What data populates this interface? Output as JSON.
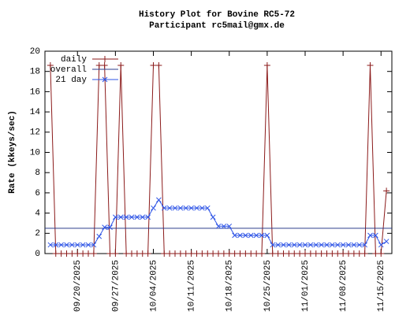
{
  "chart_data": {
    "type": "line",
    "title": "History Plot for Bovine RC5-72",
    "subtitle": "Participant rc5mail@gmx.de",
    "y_label": "Rate (kkeys/sec)",
    "x": [
      "09/15/2025",
      "09/16/2025",
      "09/17/2025",
      "09/18/2025",
      "09/19/2025",
      "09/20/2025",
      "09/21/2025",
      "09/22/2025",
      "09/23/2025",
      "09/24/2025",
      "09/25/2025",
      "09/26/2025",
      "09/27/2025",
      "09/28/2025",
      "09/29/2025",
      "09/30/2025",
      "10/01/2025",
      "10/02/2025",
      "10/03/2025",
      "10/04/2025",
      "10/05/2025",
      "10/06/2025",
      "10/07/2025",
      "10/08/2025",
      "10/09/2025",
      "10/10/2025",
      "10/11/2025",
      "10/12/2025",
      "10/13/2025",
      "10/14/2025",
      "10/15/2025",
      "10/16/2025",
      "10/17/2025",
      "10/18/2025",
      "10/19/2025",
      "10/20/2025",
      "10/21/2025",
      "10/22/2025",
      "10/23/2025",
      "10/24/2025",
      "10/25/2025",
      "10/26/2025",
      "10/27/2025",
      "10/28/2025",
      "10/29/2025",
      "10/30/2025",
      "10/31/2025",
      "11/01/2025",
      "11/02/2025",
      "11/03/2025",
      "11/04/2025",
      "11/05/2025",
      "11/06/2025",
      "11/07/2025",
      "11/08/2025",
      "11/09/2025",
      "11/10/2025",
      "11/11/2025",
      "11/12/2025",
      "11/13/2025",
      "11/14/2025",
      "11/15/2025",
      "11/16/2025"
    ],
    "series": [
      {
        "name": "daily",
        "color": "#8b1a1a",
        "marker": "plus",
        "values": [
          18.6,
          0,
          0,
          0,
          0,
          0,
          0,
          0,
          0,
          18.6,
          18.6,
          0,
          0,
          18.6,
          0,
          0,
          0,
          0,
          0,
          18.6,
          18.6,
          0,
          0,
          0,
          0,
          0,
          0,
          0,
          0,
          0,
          0,
          0,
          0,
          0,
          0,
          0,
          0,
          0,
          0,
          0,
          18.6,
          0,
          0,
          0,
          0,
          0,
          0,
          0,
          0,
          0,
          0,
          0,
          0,
          0,
          0,
          0,
          0,
          0,
          0,
          18.6,
          0,
          0,
          6.2
        ]
      },
      {
        "name": "overall",
        "color": "#2c3e8c",
        "value": 2.5
      },
      {
        "name": "21 day",
        "color": "#2f55e6",
        "marker": "cross",
        "values": [
          0.86,
          0.86,
          0.86,
          0.86,
          0.86,
          0.86,
          0.86,
          0.86,
          0.86,
          1.7,
          2.6,
          2.6,
          3.6,
          3.6,
          3.6,
          3.6,
          3.6,
          3.6,
          3.6,
          4.5,
          5.3,
          4.5,
          4.5,
          4.5,
          4.5,
          4.5,
          4.5,
          4.5,
          4.5,
          4.5,
          3.6,
          2.7,
          2.7,
          2.7,
          1.8,
          1.8,
          1.8,
          1.8,
          1.8,
          1.8,
          1.8,
          0.86,
          0.86,
          0.86,
          0.86,
          0.86,
          0.86,
          0.86,
          0.86,
          0.86,
          0.86,
          0.86,
          0.86,
          0.86,
          0.86,
          0.86,
          0.86,
          0.86,
          0.86,
          1.8,
          1.8,
          0.86,
          1.2
        ]
      }
    ],
    "xlim": [
      "09/14/2025",
      "11/17/2025"
    ],
    "xticks": [
      "09/20/2025",
      "09/27/2025",
      "10/04/2025",
      "10/11/2025",
      "10/18/2025",
      "10/25/2025",
      "11/01/2025",
      "11/08/2025",
      "11/15/2025"
    ],
    "ylim": [
      0,
      20
    ],
    "yticks": [
      0,
      2,
      4,
      6,
      8,
      10,
      12,
      14,
      16,
      18,
      20
    ],
    "legend": "top-left"
  }
}
